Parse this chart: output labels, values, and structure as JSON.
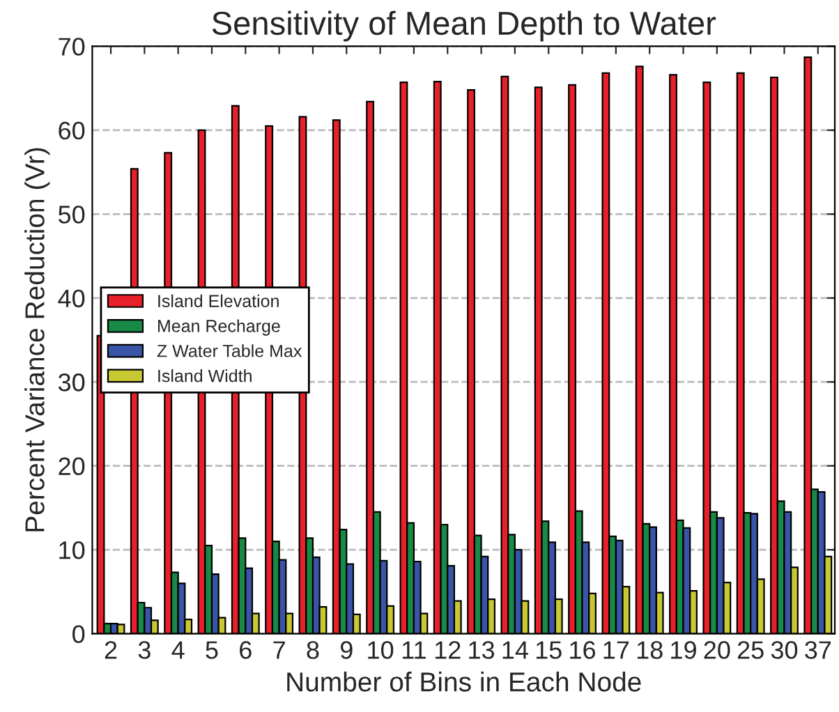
{
  "chart_data": {
    "type": "bar",
    "title": "Sensitivity of Mean Depth to Water",
    "xlabel": "Number of Bins in Each Node",
    "ylabel": "Percent Variance Reduction (Vr)",
    "categories": [
      "2",
      "3",
      "4",
      "5",
      "6",
      "7",
      "8",
      "9",
      "10",
      "11",
      "12",
      "13",
      "14",
      "15",
      "16",
      "17",
      "18",
      "19",
      "20",
      "25",
      "30",
      "37"
    ],
    "series": [
      {
        "name": "Island Elevation",
        "color": "#e8202a",
        "values": [
          35.5,
          55.4,
          57.3,
          60,
          62.9,
          60.5,
          61.6,
          61.2,
          63.4,
          65.7,
          65.8,
          64.8,
          66.4,
          65.1,
          65.4,
          66.8,
          67.6,
          66.6,
          65.7,
          66.8,
          66.3,
          68.7
        ]
      },
      {
        "name": "Mean Recharge",
        "color": "#178a45",
        "values": [
          1.2,
          3.7,
          7.3,
          10.5,
          11.4,
          11,
          11.4,
          12.4,
          14.5,
          13.2,
          13,
          11.7,
          11.8,
          13.4,
          14.6,
          11.6,
          13.1,
          13.5,
          14.5,
          14.4,
          15.8,
          17.2
        ]
      },
      {
        "name": "Z Water Table Max",
        "color": "#3a55a8",
        "values": [
          1.2,
          3.1,
          6,
          7.1,
          7.8,
          8.8,
          9.1,
          8.3,
          8.7,
          8.6,
          8.1,
          9.2,
          10,
          10.9,
          10.9,
          11.1,
          12.7,
          12.6,
          13.8,
          14.3,
          14.5,
          16.9
        ]
      },
      {
        "name": "Island Width",
        "color": "#c8c832",
        "values": [
          1.1,
          1.6,
          1.7,
          1.9,
          2.4,
          2.4,
          3.2,
          2.3,
          3.3,
          2.4,
          3.9,
          4.1,
          3.9,
          4.1,
          4.8,
          5.6,
          4.9,
          5.1,
          6.1,
          6.5,
          7.9,
          9.2
        ]
      }
    ],
    "ylim": [
      0,
      70
    ],
    "yticks": [
      0,
      10,
      20,
      30,
      40,
      50,
      60,
      70
    ],
    "grid": "y",
    "legend": "center left"
  }
}
